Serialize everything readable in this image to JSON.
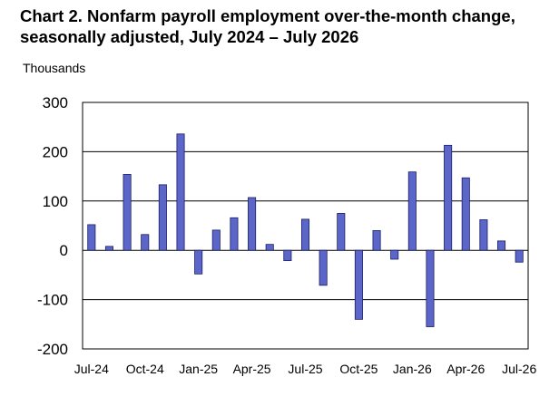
{
  "chart_data": {
    "type": "bar",
    "title_line1": "Chart 2. Nonfarm payroll employment over-the-month change,",
    "title_line2": "seasonally adjusted, July 2024 – July 2026",
    "ylabel": "Thousands",
    "xlabel": "",
    "ylim": [
      -200,
      300
    ],
    "yticks": [
      300,
      200,
      100,
      0,
      -100,
      -200
    ],
    "grid": true,
    "legend": "none",
    "bar_color": "#5b66c8",
    "bar_edge_color": "#1a1f66",
    "categories": [
      "Jul-24",
      "Aug-24",
      "Sep-24",
      "Oct-24",
      "Nov-24",
      "Dec-24",
      "Jan-25",
      "Feb-25",
      "Mar-25",
      "Apr-25",
      "May-25",
      "Jun-25",
      "Jul-25",
      "Aug-25",
      "Sep-25",
      "Oct-25",
      "Nov-25",
      "Dec-25",
      "Jan-26",
      "Feb-26",
      "Mar-26",
      "Apr-26",
      "May-26",
      "Jun-26",
      "Jul-26"
    ],
    "values": [
      52,
      8,
      154,
      32,
      133,
      236,
      -48,
      41,
      66,
      107,
      12,
      -21,
      63,
      -71,
      75,
      -140,
      40,
      -18,
      159,
      -155,
      213,
      147,
      62,
      19,
      -24
    ],
    "x_tick_labels": [
      {
        "index": 0,
        "label": "Jul-24"
      },
      {
        "index": 3,
        "label": "Oct-24"
      },
      {
        "index": 6,
        "label": "Jan-25"
      },
      {
        "index": 9,
        "label": "Apr-25"
      },
      {
        "index": 12,
        "label": "Jul-25"
      },
      {
        "index": 15,
        "label": "Oct-25"
      },
      {
        "index": 18,
        "label": "Jan-26"
      },
      {
        "index": 21,
        "label": "Apr-26"
      },
      {
        "index": 24,
        "label": "Jul-26"
      }
    ]
  }
}
